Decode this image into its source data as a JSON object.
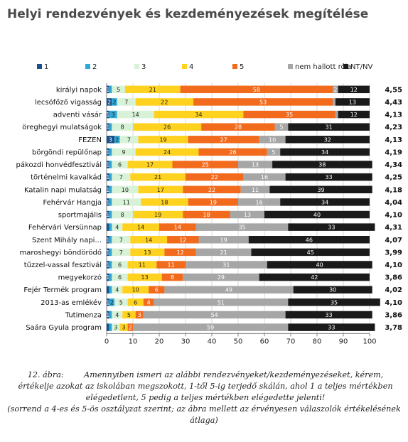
{
  "chart_data": {
    "type": "bar",
    "stacked": true,
    "orientation": "horizontal",
    "title": "Helyi rendezvények és kezdeményezések megítélése",
    "xlim": [
      0,
      100
    ],
    "x_ticks": [
      0,
      10,
      20,
      30,
      40,
      50,
      60,
      70,
      80,
      90,
      100
    ],
    "legend_position": "top",
    "grid": true,
    "series": [
      {
        "name": "1",
        "color": "#17508a"
      },
      {
        "name": "2",
        "color": "#2ea9d8"
      },
      {
        "name": "3",
        "color": "#d8f2d8"
      },
      {
        "name": "4",
        "color": "#ffd21f"
      },
      {
        "name": "5",
        "color": "#f26b1d"
      },
      {
        "name": "nem hallott róla",
        "color": "#a6a6a6"
      },
      {
        "name": "NT/NV",
        "color": "#1a1a1a"
      }
    ],
    "categories": [
      "királyi napok",
      "lecsófőző vigasság",
      "adventi vásár",
      "öreghegyi mulatságok",
      "FEZEN",
      "börgöndi repülőnap",
      "pákozdi honvédfesztivál",
      "történelmi kavalkád",
      "Katalin napi mulatság",
      "Fehérvár Hangja",
      "sportmajális",
      "Fehérvári Versünnap",
      "Szent Mihály napi...",
      "maroshegyi böndörödő",
      "tűzzel-vassal fesztivál",
      "megyekorzó",
      "Fejér Termék program",
      "2013-as emlékév",
      "Tutimenza",
      "Saára Gyula program"
    ],
    "rows": [
      [
        1,
        1,
        5,
        21,
        58,
        2,
        12
      ],
      [
        2,
        2,
        7,
        22,
        53,
        1,
        13
      ],
      [
        1,
        3,
        14,
        34,
        35,
        1,
        12
      ],
      [
        1,
        1,
        8,
        26,
        28,
        5,
        31
      ],
      [
        3,
        2,
        7,
        19,
        27,
        10,
        32
      ],
      [
        1,
        1,
        9,
        24,
        26,
        5,
        34
      ],
      [
        1,
        1,
        6,
        17,
        25,
        13,
        38
      ],
      [
        1,
        1,
        7,
        21,
        22,
        16,
        33
      ],
      [
        1,
        1,
        10,
        17,
        22,
        11,
        39
      ],
      [
        1,
        1,
        11,
        18,
        19,
        16,
        34
      ],
      [
        1,
        1,
        8,
        19,
        18,
        13,
        40
      ],
      [
        1,
        1,
        4,
        14,
        14,
        35,
        33
      ],
      [
        1,
        1,
        7,
        14,
        12,
        19,
        46
      ],
      [
        1,
        1,
        7,
        13,
        12,
        21,
        45
      ],
      [
        1,
        1,
        6,
        11,
        11,
        31,
        40
      ],
      [
        1,
        1,
        6,
        13,
        8,
        29,
        42
      ],
      [
        1,
        1,
        4,
        10,
        6,
        49,
        30
      ],
      [
        1,
        2,
        5,
        6,
        4,
        51,
        35
      ],
      [
        1,
        1,
        4,
        5,
        3,
        54,
        33
      ],
      [
        1,
        1,
        3,
        3,
        2,
        59,
        33
      ]
    ],
    "segment_labels": [
      [
        "1",
        "",
        "5",
        "21",
        "58",
        "2",
        "12"
      ],
      [
        "2",
        "2",
        "7",
        "22",
        "53",
        "",
        "13"
      ],
      [
        "1",
        "3",
        "14",
        "34",
        "35",
        "",
        "12"
      ],
      [
        "1",
        "",
        "8",
        "26",
        "28",
        "5",
        "31"
      ],
      [
        "3",
        "2",
        "7",
        "19",
        "27",
        "10",
        "32"
      ],
      [
        "1",
        "",
        "9",
        "24",
        "26",
        "5",
        "34"
      ],
      [
        "1",
        "",
        "6",
        "17",
        "25",
        "13",
        "38"
      ],
      [
        "1",
        "",
        "7",
        "21",
        "22",
        "16",
        "33"
      ],
      [
        "1",
        "",
        "10",
        "17",
        "22",
        "11",
        "39"
      ],
      [
        "1",
        "",
        "11",
        "18",
        "19",
        "16",
        "34"
      ],
      [
        "1",
        "",
        "8",
        "19",
        "18",
        "13",
        "40"
      ],
      [
        "",
        "",
        "4",
        "14",
        "14",
        "35",
        "33"
      ],
      [
        "1",
        "",
        "7",
        "14",
        "12",
        "19",
        "46"
      ],
      [
        "1",
        "",
        "7",
        "13",
        "12",
        "21",
        "45"
      ],
      [
        "1",
        "",
        "6",
        "11",
        "11",
        "31",
        "40"
      ],
      [
        "1",
        "",
        "6",
        "13",
        "8",
        "29",
        "42"
      ],
      [
        "",
        "",
        "4",
        "10",
        "6",
        "49",
        "30"
      ],
      [
        "1",
        "2",
        "5",
        "6",
        "4",
        "51",
        "35"
      ],
      [
        "1",
        "",
        "4",
        "5",
        "3",
        "54",
        "33"
      ],
      [
        "",
        "",
        "3",
        "3",
        "2",
        "59",
        "33"
      ]
    ],
    "averages": [
      "4,55",
      "4,43",
      "4,13",
      "4,23",
      "4,13",
      "4,19",
      "4,34",
      "4,25",
      "4,18",
      "4,04",
      "4,10",
      "4,31",
      "4,07",
      "3,99",
      "4,10",
      "3,86",
      "4,02",
      "4,10",
      "3,86",
      "3,78"
    ]
  },
  "caption": {
    "figure_label": "12. ábra:",
    "text": "Amennyiben ismeri az alábbi rendezvényeket/kezdeményezéseket, kérem, értékelje azokat az iskolában megszokott, 1-től 5-ig terjedő skálán, ahol 1 a teljes mértékben elégedetlent, 5 pedig a teljes mértékben elégedette jelenti!",
    "note": "(sorrend a 4-es és 5-ös osztályzat szerint; az ábra mellett az érvényesen válaszolók értékelésének átlaga)"
  }
}
